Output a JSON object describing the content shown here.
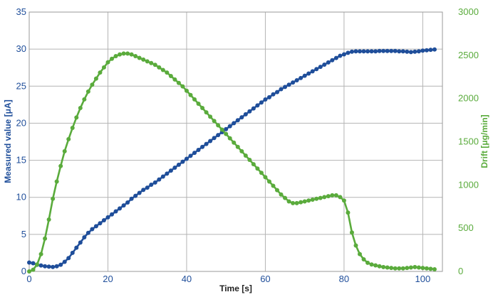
{
  "chart_data": {
    "type": "line",
    "title": "",
    "xlabel": "Time [s]",
    "ylabel": "Measured value [μA]",
    "y2label": "Drift [μg/min]",
    "xlim": [
      0,
      105
    ],
    "ylim": [
      0,
      35
    ],
    "y2lim": [
      0,
      3000
    ],
    "x_ticks": [
      "0",
      "20",
      "40",
      "60",
      "80",
      "100"
    ],
    "y_ticks": [
      "0",
      "5",
      "10",
      "15",
      "20",
      "25",
      "30",
      "35"
    ],
    "y2_ticks": [
      "0",
      "500",
      "1000",
      "1500",
      "2000",
      "2500",
      "3000"
    ],
    "grid": true,
    "legend": "none",
    "colors": {
      "measured": "#1f4e9a",
      "drift": "#5aab3c",
      "grid": "#b4b4b4"
    },
    "series": [
      {
        "axis": "left",
        "color": "#1f4e9a",
        "points": [
          [
            0,
            1.2
          ],
          [
            1,
            1.1
          ],
          [
            2,
            0.9
          ],
          [
            3,
            0.8
          ],
          [
            4,
            0.7
          ],
          [
            5,
            0.65
          ],
          [
            6,
            0.6
          ],
          [
            7,
            0.7
          ],
          [
            8,
            0.9
          ],
          [
            9,
            1.3
          ],
          [
            10,
            1.8
          ],
          [
            11,
            2.5
          ],
          [
            12,
            3.2
          ],
          [
            13,
            3.9
          ],
          [
            14,
            4.6
          ],
          [
            15,
            5.2
          ],
          [
            16,
            5.7
          ],
          [
            17,
            6.1
          ],
          [
            18,
            6.5
          ],
          [
            19,
            6.9
          ],
          [
            20,
            7.3
          ],
          [
            21,
            7.7
          ],
          [
            22,
            8.1
          ],
          [
            23,
            8.5
          ],
          [
            24,
            8.9
          ],
          [
            25,
            9.3
          ],
          [
            26,
            9.8
          ],
          [
            27,
            10.2
          ],
          [
            28,
            10.6
          ],
          [
            29,
            11.0
          ],
          [
            30,
            11.3
          ],
          [
            31,
            11.7
          ],
          [
            32,
            12.0
          ],
          [
            33,
            12.4
          ],
          [
            34,
            12.8
          ],
          [
            35,
            13.2
          ],
          [
            36,
            13.6
          ],
          [
            37,
            14.0
          ],
          [
            38,
            14.4
          ],
          [
            39,
            14.8
          ],
          [
            40,
            15.2
          ],
          [
            41,
            15.6
          ],
          [
            42,
            16.0
          ],
          [
            43,
            16.4
          ],
          [
            44,
            16.8
          ],
          [
            45,
            17.2
          ],
          [
            46,
            17.6
          ],
          [
            47,
            18.0
          ],
          [
            48,
            18.4
          ],
          [
            49,
            18.8
          ],
          [
            50,
            19.2
          ],
          [
            51,
            19.6
          ],
          [
            52,
            20.0
          ],
          [
            53,
            20.4
          ],
          [
            54,
            20.8
          ],
          [
            55,
            21.2
          ],
          [
            56,
            21.6
          ],
          [
            57,
            22.0
          ],
          [
            58,
            22.4
          ],
          [
            59,
            22.8
          ],
          [
            60,
            23.2
          ],
          [
            61,
            23.5
          ],
          [
            62,
            23.9
          ],
          [
            63,
            24.2
          ],
          [
            64,
            24.6
          ],
          [
            65,
            24.9
          ],
          [
            66,
            25.2
          ],
          [
            67,
            25.5
          ],
          [
            68,
            25.8
          ],
          [
            69,
            26.1
          ],
          [
            70,
            26.4
          ],
          [
            71,
            26.7
          ],
          [
            72,
            27.0
          ],
          [
            73,
            27.3
          ],
          [
            74,
            27.6
          ],
          [
            75,
            27.9
          ],
          [
            76,
            28.2
          ],
          [
            77,
            28.5
          ],
          [
            78,
            28.8
          ],
          [
            79,
            29.1
          ],
          [
            80,
            29.3
          ],
          [
            81,
            29.5
          ],
          [
            82,
            29.65
          ],
          [
            83,
            29.7
          ],
          [
            84,
            29.7
          ],
          [
            85,
            29.7
          ],
          [
            86,
            29.7
          ],
          [
            87,
            29.7
          ],
          [
            88,
            29.7
          ],
          [
            89,
            29.75
          ],
          [
            90,
            29.75
          ],
          [
            91,
            29.75
          ],
          [
            92,
            29.75
          ],
          [
            93,
            29.75
          ],
          [
            94,
            29.7
          ],
          [
            95,
            29.7
          ],
          [
            96,
            29.65
          ],
          [
            97,
            29.6
          ],
          [
            98,
            29.65
          ],
          [
            99,
            29.7
          ],
          [
            100,
            29.8
          ],
          [
            101,
            29.85
          ],
          [
            102,
            29.9
          ],
          [
            103,
            29.95
          ]
        ]
      },
      {
        "axis": "right",
        "color": "#5aab3c",
        "points": [
          [
            0,
            0
          ],
          [
            1,
            20
          ],
          [
            2,
            80
          ],
          [
            3,
            200
          ],
          [
            4,
            380
          ],
          [
            5,
            600
          ],
          [
            6,
            840
          ],
          [
            7,
            1040
          ],
          [
            8,
            1220
          ],
          [
            9,
            1390
          ],
          [
            10,
            1530
          ],
          [
            11,
            1660
          ],
          [
            12,
            1780
          ],
          [
            13,
            1890
          ],
          [
            14,
            1990
          ],
          [
            15,
            2080
          ],
          [
            16,
            2160
          ],
          [
            17,
            2230
          ],
          [
            18,
            2300
          ],
          [
            19,
            2360
          ],
          [
            20,
            2420
          ],
          [
            21,
            2460
          ],
          [
            22,
            2490
          ],
          [
            23,
            2510
          ],
          [
            24,
            2520
          ],
          [
            25,
            2520
          ],
          [
            26,
            2510
          ],
          [
            27,
            2490
          ],
          [
            28,
            2470
          ],
          [
            29,
            2450
          ],
          [
            30,
            2430
          ],
          [
            31,
            2410
          ],
          [
            32,
            2390
          ],
          [
            33,
            2360
          ],
          [
            34,
            2330
          ],
          [
            35,
            2300
          ],
          [
            36,
            2260
          ],
          [
            37,
            2220
          ],
          [
            38,
            2180
          ],
          [
            39,
            2140
          ],
          [
            40,
            2090
          ],
          [
            41,
            2040
          ],
          [
            42,
            1990
          ],
          [
            43,
            1940
          ],
          [
            44,
            1890
          ],
          [
            45,
            1840
          ],
          [
            46,
            1790
          ],
          [
            47,
            1740
          ],
          [
            48,
            1690
          ],
          [
            49,
            1640
          ],
          [
            50,
            1590
          ],
          [
            51,
            1540
          ],
          [
            52,
            1490
          ],
          [
            53,
            1440
          ],
          [
            54,
            1390
          ],
          [
            55,
            1340
          ],
          [
            56,
            1290
          ],
          [
            57,
            1240
          ],
          [
            58,
            1190
          ],
          [
            59,
            1140
          ],
          [
            60,
            1090
          ],
          [
            61,
            1040
          ],
          [
            62,
            990
          ],
          [
            63,
            940
          ],
          [
            64,
            890
          ],
          [
            65,
            850
          ],
          [
            66,
            810
          ],
          [
            67,
            790
          ],
          [
            68,
            790
          ],
          [
            69,
            800
          ],
          [
            70,
            810
          ],
          [
            71,
            820
          ],
          [
            72,
            830
          ],
          [
            73,
            840
          ],
          [
            74,
            850
          ],
          [
            75,
            860
          ],
          [
            76,
            870
          ],
          [
            77,
            880
          ],
          [
            78,
            880
          ],
          [
            79,
            860
          ],
          [
            80,
            820
          ],
          [
            81,
            680
          ],
          [
            82,
            450
          ],
          [
            83,
            300
          ],
          [
            84,
            200
          ],
          [
            85,
            140
          ],
          [
            86,
            100
          ],
          [
            87,
            80
          ],
          [
            88,
            70
          ],
          [
            89,
            60
          ],
          [
            90,
            50
          ],
          [
            91,
            45
          ],
          [
            92,
            40
          ],
          [
            93,
            35
          ],
          [
            94,
            35
          ],
          [
            95,
            35
          ],
          [
            96,
            40
          ],
          [
            97,
            45
          ],
          [
            98,
            50
          ],
          [
            99,
            45
          ],
          [
            100,
            40
          ],
          [
            101,
            35
          ],
          [
            102,
            30
          ],
          [
            103,
            25
          ]
        ]
      }
    ]
  }
}
